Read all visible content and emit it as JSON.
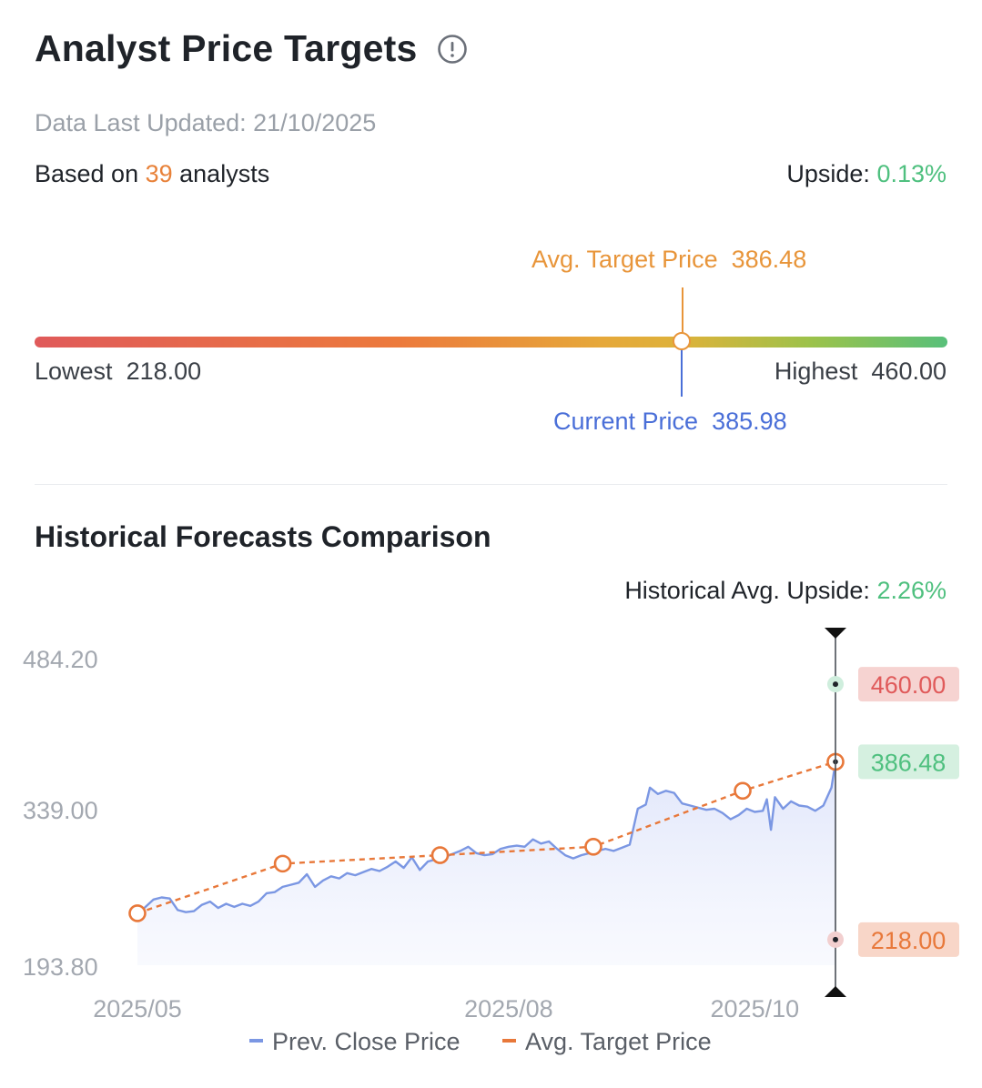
{
  "header": {
    "title": "Analyst Price Targets",
    "icon": "info-circle-icon",
    "updated": "Data Last Updated: 21/10/2025",
    "based_prefix": "Based on ",
    "analyst_count": "39",
    "based_suffix": " analysts",
    "upside_label": "Upside: ",
    "upside_value": "0.13%"
  },
  "range": {
    "avg_label": "Avg. Target Price",
    "avg_value": "386.48",
    "current_label": "Current Price",
    "current_value": "385.98",
    "lowest_label": "Lowest",
    "lowest_value": "218.00",
    "highest_label": "Highest",
    "highest_value": "460.00",
    "min": 218.0,
    "max": 460.0,
    "avg": 386.48,
    "current": 385.98
  },
  "historical": {
    "title": "Historical Forecasts Comparison",
    "upside_label": "Historical Avg. Upside: ",
    "upside_value": "2.26%"
  },
  "colors": {
    "close": "#7b97e3",
    "target": "#e8783a",
    "high": "#e05a5a",
    "avg": "#4fc07f",
    "low": "#e8783a"
  },
  "chart_data": {
    "type": "line",
    "y_ticks": [
      "484.20",
      "339.00",
      "193.80"
    ],
    "ylim": [
      193.8,
      484.2
    ],
    "x_ticks": [
      {
        "label": "2025/05",
        "x": "2025-05-01"
      },
      {
        "label": "2025/08",
        "x": "2025-08-01"
      },
      {
        "label": "2025/10",
        "x": "2025-10-01"
      }
    ],
    "xlim": [
      "2025-05-01",
      "2025-10-21"
    ],
    "series": [
      {
        "name": "Prev. Close Price",
        "style": "solid-area",
        "points": [
          [
            "2025-05-01",
            242
          ],
          [
            "2025-05-03",
            249
          ],
          [
            "2025-05-05",
            256
          ],
          [
            "2025-05-07",
            258
          ],
          [
            "2025-05-09",
            257
          ],
          [
            "2025-05-11",
            246
          ],
          [
            "2025-05-13",
            244
          ],
          [
            "2025-05-15",
            245
          ],
          [
            "2025-05-17",
            251
          ],
          [
            "2025-05-19",
            254
          ],
          [
            "2025-05-21",
            248
          ],
          [
            "2025-05-23",
            252
          ],
          [
            "2025-05-25",
            249
          ],
          [
            "2025-05-27",
            252
          ],
          [
            "2025-05-29",
            250
          ],
          [
            "2025-05-31",
            254
          ],
          [
            "2025-06-02",
            262
          ],
          [
            "2025-06-04",
            263
          ],
          [
            "2025-06-06",
            268
          ],
          [
            "2025-06-08",
            270
          ],
          [
            "2025-06-10",
            272
          ],
          [
            "2025-06-12",
            280
          ],
          [
            "2025-06-14",
            268
          ],
          [
            "2025-06-16",
            274
          ],
          [
            "2025-06-18",
            278
          ],
          [
            "2025-06-20",
            276
          ],
          [
            "2025-06-22",
            281
          ],
          [
            "2025-06-24",
            279
          ],
          [
            "2025-06-26",
            282
          ],
          [
            "2025-06-28",
            285
          ],
          [
            "2025-06-30",
            283
          ],
          [
            "2025-07-02",
            287
          ],
          [
            "2025-07-04",
            292
          ],
          [
            "2025-07-06",
            286
          ],
          [
            "2025-07-08",
            296
          ],
          [
            "2025-07-10",
            284
          ],
          [
            "2025-07-12",
            292
          ],
          [
            "2025-07-14",
            294
          ],
          [
            "2025-07-16",
            296
          ],
          [
            "2025-07-18",
            299
          ],
          [
            "2025-07-20",
            302
          ],
          [
            "2025-07-22",
            306
          ],
          [
            "2025-07-24",
            300
          ],
          [
            "2025-07-26",
            298
          ],
          [
            "2025-07-28",
            299
          ],
          [
            "2025-07-30",
            304
          ],
          [
            "2025-08-01",
            306
          ],
          [
            "2025-08-03",
            307
          ],
          [
            "2025-08-05",
            306
          ],
          [
            "2025-08-07",
            313
          ],
          [
            "2025-08-09",
            309
          ],
          [
            "2025-08-11",
            311
          ],
          [
            "2025-08-13",
            304
          ],
          [
            "2025-08-15",
            298
          ],
          [
            "2025-08-17",
            295
          ],
          [
            "2025-08-19",
            298
          ],
          [
            "2025-08-21",
            300
          ],
          [
            "2025-08-23",
            302
          ],
          [
            "2025-08-25",
            304
          ],
          [
            "2025-08-27",
            302
          ],
          [
            "2025-08-29",
            305
          ],
          [
            "2025-08-31",
            308
          ],
          [
            "2025-09-02",
            342
          ],
          [
            "2025-09-04",
            346
          ],
          [
            "2025-09-05",
            362
          ],
          [
            "2025-09-07",
            356
          ],
          [
            "2025-09-09",
            359
          ],
          [
            "2025-09-11",
            357
          ],
          [
            "2025-09-13",
            347
          ],
          [
            "2025-09-15",
            345
          ],
          [
            "2025-09-17",
            343
          ],
          [
            "2025-09-19",
            341
          ],
          [
            "2025-09-21",
            342
          ],
          [
            "2025-09-23",
            338
          ],
          [
            "2025-09-25",
            332
          ],
          [
            "2025-09-27",
            336
          ],
          [
            "2025-09-29",
            342
          ],
          [
            "2025-10-01",
            339
          ],
          [
            "2025-10-03",
            340
          ],
          [
            "2025-10-04",
            351
          ],
          [
            "2025-10-05",
            322
          ],
          [
            "2025-10-06",
            353
          ],
          [
            "2025-10-08",
            342
          ],
          [
            "2025-10-10",
            349
          ],
          [
            "2025-10-12",
            345
          ],
          [
            "2025-10-14",
            344
          ],
          [
            "2025-10-16",
            340
          ],
          [
            "2025-10-18",
            345
          ],
          [
            "2025-10-20",
            362
          ],
          [
            "2025-10-21",
            385.98
          ]
        ]
      },
      {
        "name": "Avg. Target Price",
        "style": "dashed-markers",
        "points": [
          [
            "2025-05-01",
            243
          ],
          [
            "2025-06-06",
            290
          ],
          [
            "2025-07-15",
            298
          ],
          [
            "2025-08-22",
            306
          ],
          [
            "2025-09-28",
            359
          ],
          [
            "2025-10-21",
            386.48
          ]
        ]
      }
    ],
    "end_markers": [
      {
        "label": "460.00",
        "value": 460.0,
        "kind": "high"
      },
      {
        "label": "386.48",
        "value": 386.48,
        "kind": "avg"
      },
      {
        "label": "218.00",
        "value": 218.0,
        "kind": "low"
      }
    ],
    "legend": [
      "Prev. Close Price",
      "Avg. Target Price"
    ],
    "legend_position": "bottom",
    "grid": false
  }
}
